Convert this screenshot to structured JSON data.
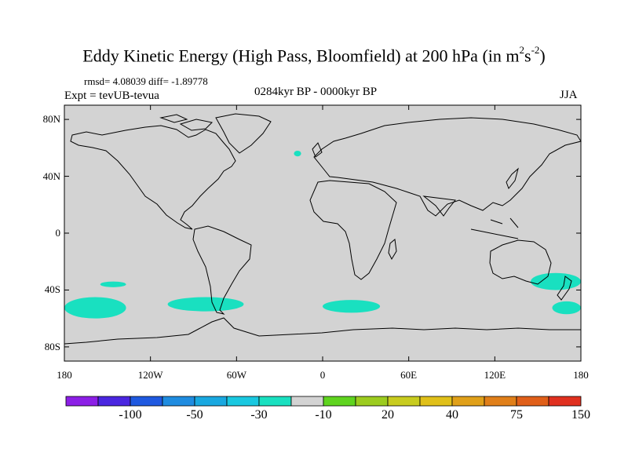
{
  "header": {
    "title_main": "Eddy Kinetic Energy (High Pass, Bloomfield) at 200 hPa (in m",
    "title_sup1": "2",
    "title_s": "s",
    "title_sup2": "-2",
    "title_close": ")",
    "stats": "rmsd= 4.08039 diff= -1.89778",
    "expt": "Expt = tevUB-tevua",
    "period": "0284kyr BP - 0000kyr BP",
    "season": "JJA"
  },
  "axes": {
    "lat_labels": [
      "80N",
      "40N",
      "0",
      "40S",
      "80S"
    ],
    "lat_values": [
      80,
      40,
      0,
      -40,
      -80
    ],
    "lon_labels": [
      "180",
      "120W",
      "60W",
      "0",
      "60E",
      "120E",
      "180"
    ],
    "lon_values": [
      -180,
      -120,
      -60,
      0,
      60,
      120,
      180
    ],
    "lat_range": [
      -90,
      90
    ],
    "lon_range": [
      -180,
      180
    ]
  },
  "colors": {
    "background_field": "#d3d3d3",
    "anomaly_fill": "#19e0c0",
    "coast": "#000000"
  },
  "colorbar": {
    "colors": [
      "#8c1fe6",
      "#4a26e0",
      "#1f59e0",
      "#1f8ce0",
      "#19a8e0",
      "#19c8e0",
      "#19e0c0",
      "#d3d3d3",
      "#5fd41f",
      "#9ccc1f",
      "#c8cc1f",
      "#e0c019",
      "#e0a019",
      "#e07f19",
      "#e05f19",
      "#e0301f"
    ],
    "labels": [
      "-100",
      "-50",
      "-30",
      "-10",
      "20",
      "40",
      "75",
      "150"
    ]
  },
  "chart_data": {
    "type": "heatmap",
    "title": "Eddy Kinetic Energy (High Pass, Bloomfield) at 200 hPa (in m2s-2)",
    "field_default_bin": "-10 to 20",
    "regions": [
      {
        "name_bin": "-30 to -10",
        "lon": [
          -20,
          -15
        ],
        "lat": [
          54,
          58
        ]
      },
      {
        "name_bin": "-30 to -10",
        "lon": [
          -155,
          -137
        ],
        "lat": [
          -38,
          -34
        ]
      },
      {
        "name_bin": "-30 to -10",
        "lon": [
          -180,
          -137
        ],
        "lat": [
          -60,
          -45
        ]
      },
      {
        "name_bin": "-30 to -10",
        "lon": [
          -108,
          -55
        ],
        "lat": [
          -55,
          -45
        ]
      },
      {
        "name_bin": "-30 to -10",
        "lon": [
          0,
          40
        ],
        "lat": [
          -56,
          -47
        ]
      },
      {
        "name_bin": "-30 to -10",
        "lon": [
          145,
          180
        ],
        "lat": [
          -40,
          -28
        ]
      },
      {
        "name_bin": "-30 to -10",
        "lon": [
          160,
          180
        ],
        "lat": [
          -57,
          -48
        ]
      }
    ]
  }
}
